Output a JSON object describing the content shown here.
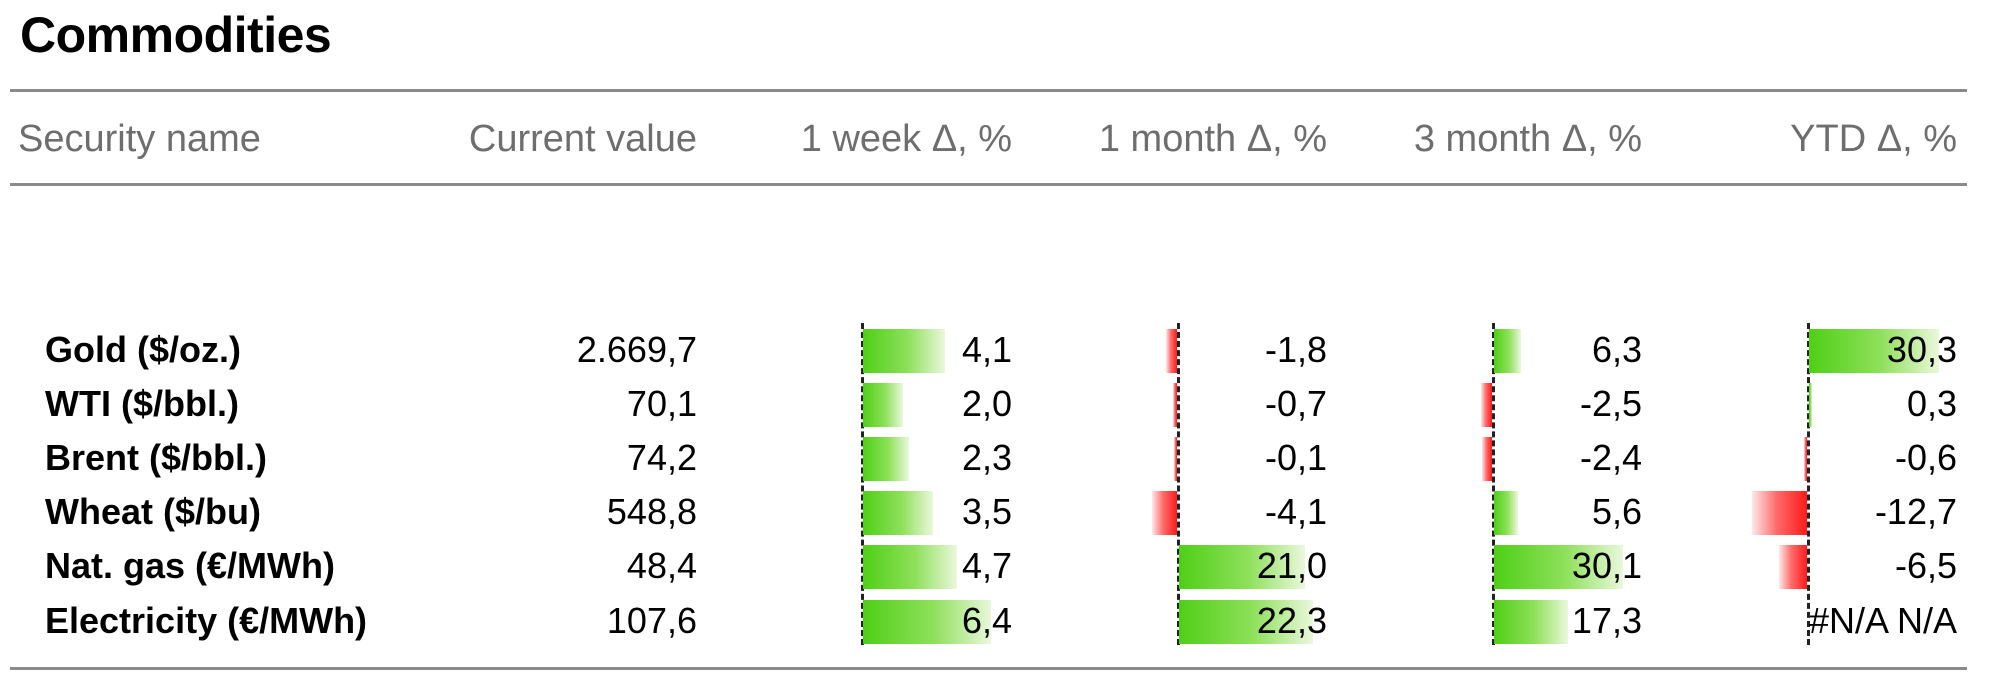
{
  "title": "Commodities",
  "columns": [
    "Security name",
    "Current value",
    "1 week Δ, %",
    "1 month Δ, %",
    "3 month Δ, %",
    "YTD Δ, %"
  ],
  "rows": [
    {
      "name": "Gold ($/oz.)",
      "current": "2.669,7",
      "w1": "4,1",
      "m1": "-1,8",
      "m3": "6,3",
      "ytd": "30,3"
    },
    {
      "name": "WTI ($/bbl.)",
      "current": "70,1",
      "w1": "2,0",
      "m1": "-0,7",
      "m3": "-2,5",
      "ytd": "0,3"
    },
    {
      "name": "Brent ($/bbl.)",
      "current": "74,2",
      "w1": "2,3",
      "m1": "-0,1",
      "m3": "-2,4",
      "ytd": "-0,6"
    },
    {
      "name": "Wheat ($/bu)",
      "current": "548,8",
      "w1": "3,5",
      "m1": "-4,1",
      "m3": "5,6",
      "ytd": "-12,7"
    },
    {
      "name": "Nat. gas (€/MWh)",
      "current": "48,4",
      "w1": "4,7",
      "m1": "21,0",
      "m3": "30,1",
      "ytd": "-6,5"
    },
    {
      "name": "Electricity (€/MWh)",
      "current": "107,6",
      "w1": "6,4",
      "m1": "22,3",
      "m3": "17,3",
      "ytd": "#N/A N/A"
    }
  ],
  "colors": {
    "positive": "#4fcf17",
    "negative": "#ff1a1a",
    "rule": "#8a8a8a",
    "header_text": "#6e6e6e"
  }
}
